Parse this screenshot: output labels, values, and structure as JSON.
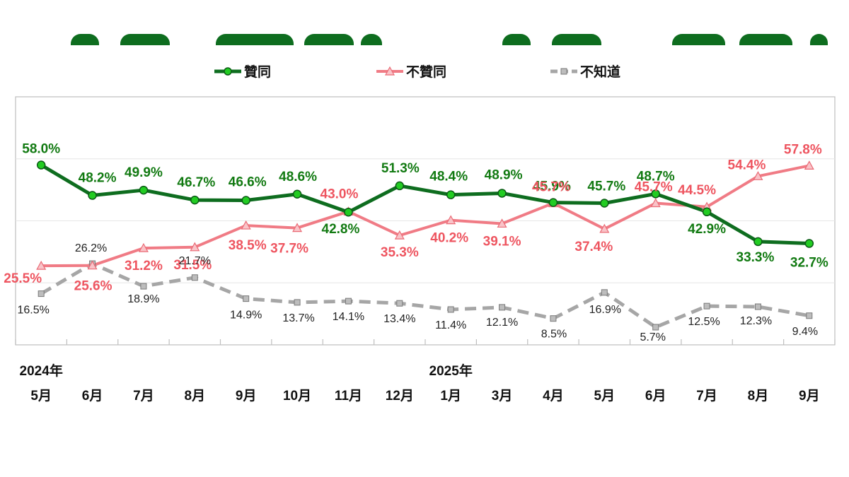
{
  "chart_data": {
    "type": "line",
    "year_labels": [
      {
        "index": 0,
        "label": "2024年"
      },
      {
        "index": 8,
        "label": "2025年"
      }
    ],
    "categories": [
      "5月",
      "6月",
      "7月",
      "8月",
      "9月",
      "10月",
      "11月",
      "12月",
      "1月",
      "3月",
      "4月",
      "5月",
      "6月",
      "7月",
      "8月",
      "9月"
    ],
    "series": [
      {
        "name": "贊同",
        "color": "#0e6d1f",
        "marker": "circle",
        "values": [
          58.0,
          48.2,
          49.9,
          46.7,
          46.6,
          48.6,
          42.8,
          51.3,
          48.4,
          48.9,
          45.9,
          45.7,
          48.7,
          42.9,
          33.3,
          32.7
        ],
        "labels": [
          "58.0%",
          "48.2%",
          "49.9%",
          "46.7%",
          "46.6%",
          "48.6%",
          "42.8%",
          "51.3%",
          "48.4%",
          "48.9%",
          "45.9%",
          "45.7%",
          "48.7%",
          "42.9%",
          "33.3%",
          "32.7%"
        ]
      },
      {
        "name": "不贊同",
        "color": "#f07b85",
        "marker": "triangle",
        "values": [
          25.5,
          25.6,
          31.2,
          31.5,
          38.5,
          37.7,
          43.0,
          35.3,
          40.2,
          39.1,
          45.7,
          37.4,
          45.7,
          44.5,
          54.4,
          57.8
        ],
        "labels": [
          "25.5%",
          "25.6%",
          "31.2%",
          "31.5%",
          "38.5%",
          "37.7%",
          "43.0%",
          "35.3%",
          "40.2%",
          "39.1%",
          "45.7%",
          "37.4%",
          "45.7%",
          "44.5%",
          "54.4%",
          "57.8%"
        ]
      },
      {
        "name": "不知道",
        "color": "#a6a6a6",
        "marker": "square",
        "values": [
          16.5,
          26.2,
          18.9,
          21.7,
          14.9,
          13.7,
          14.1,
          13.4,
          11.4,
          12.1,
          8.5,
          16.9,
          5.7,
          12.5,
          12.3,
          9.4
        ],
        "labels": [
          "16.5%",
          "26.2%",
          "18.9%",
          "21.7%",
          "14.9%",
          "13.7%",
          "14.1%",
          "13.4%",
          "11.4%",
          "12.1%",
          "8.5%",
          "16.9%",
          "5.7%",
          "12.5%",
          "12.3%",
          "9.4%"
        ]
      }
    ],
    "ylim": [
      0,
      80
    ],
    "grid": "horizontal",
    "legend_position": "top"
  }
}
